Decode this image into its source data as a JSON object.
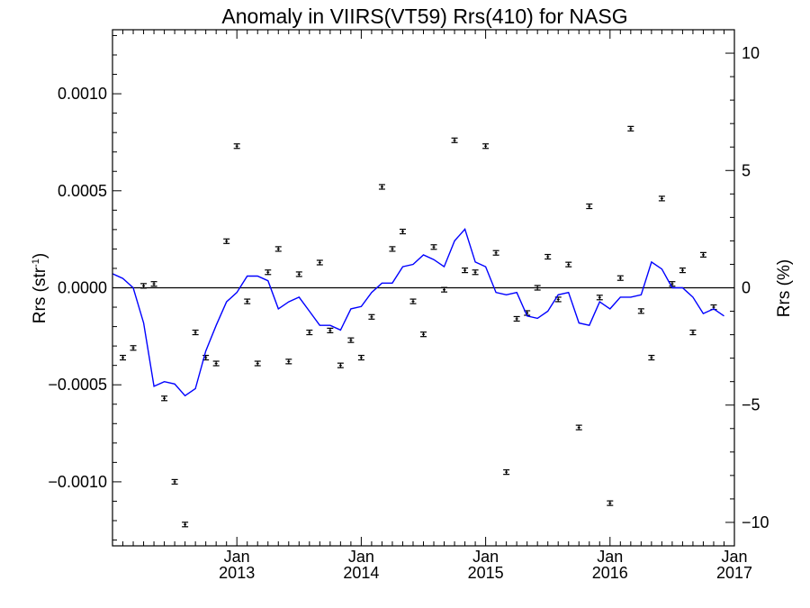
{
  "chart_data": {
    "type": "scatter",
    "title": "Anomaly in VIIRS(VT59) Rrs(410) for NASG",
    "ylabel_left": "Rrs (str",
    "ylabel_left_superscript": "-1",
    "ylabel_left_close": ")",
    "ylabel_right": "Rrs (%)",
    "xlabel": "",
    "x_range": [
      "2012-01",
      "2017-01"
    ],
    "ylim_left": [
      -0.00133,
      0.00133
    ],
    "ylim_right": [
      -11,
      11
    ],
    "left_ticks": [
      {
        "value": 0.001,
        "label": "0.0010"
      },
      {
        "value": 0.0005,
        "label": "0.0005"
      },
      {
        "value": 0.0,
        "label": "0.0000"
      },
      {
        "value": -0.0005,
        "label": "−0.0005"
      },
      {
        "value": -0.001,
        "label": "−0.0010"
      }
    ],
    "right_ticks": [
      {
        "value": 10,
        "label": "10"
      },
      {
        "value": 5,
        "label": "5"
      },
      {
        "value": 0,
        "label": "0"
      },
      {
        "value": -5,
        "label": "−5"
      },
      {
        "value": -10,
        "label": "−10"
      }
    ],
    "x_ticks": [
      {
        "date": "2013-01",
        "month": "Jan",
        "year": "2013"
      },
      {
        "date": "2014-01",
        "month": "Jan",
        "year": "2014"
      },
      {
        "date": "2015-01",
        "month": "Jan",
        "year": "2015"
      },
      {
        "date": "2016-01",
        "month": "Jan",
        "year": "2016"
      },
      {
        "date": "2017-01",
        "month": "Jan",
        "year": "2017"
      }
    ],
    "zero_line": true,
    "grid": false,
    "series": [
      {
        "kind": "points_with_errorbars",
        "color": "#000000",
        "points": [
          {
            "x": "2012-02",
            "y": -0.00036
          },
          {
            "x": "2012-03",
            "y": -0.00031
          },
          {
            "x": "2012-04",
            "y": 1e-05
          },
          {
            "x": "2012-05",
            "y": 2e-05
          },
          {
            "x": "2012-06",
            "y": -0.00057
          },
          {
            "x": "2012-07",
            "y": -0.001
          },
          {
            "x": "2012-08",
            "y": -0.00122
          },
          {
            "x": "2012-09",
            "y": -0.00023
          },
          {
            "x": "2012-10",
            "y": -0.00036
          },
          {
            "x": "2012-11",
            "y": -0.00039
          },
          {
            "x": "2012-12",
            "y": 0.00024
          },
          {
            "x": "2013-01",
            "y": 0.00073
          },
          {
            "x": "2013-02",
            "y": -7e-05
          },
          {
            "x": "2013-03",
            "y": -0.00039
          },
          {
            "x": "2013-04",
            "y": 8e-05
          },
          {
            "x": "2013-05",
            "y": 0.0002
          },
          {
            "x": "2013-06",
            "y": -0.00038
          },
          {
            "x": "2013-07",
            "y": 7e-05
          },
          {
            "x": "2013-08",
            "y": -0.00023
          },
          {
            "x": "2013-09",
            "y": 0.00013
          },
          {
            "x": "2013-10",
            "y": -0.00022
          },
          {
            "x": "2013-11",
            "y": -0.0004
          },
          {
            "x": "2013-12",
            "y": -0.00027
          },
          {
            "x": "2014-01",
            "y": -0.00036
          },
          {
            "x": "2014-02",
            "y": -0.00015
          },
          {
            "x": "2014-03",
            "y": 0.00052
          },
          {
            "x": "2014-04",
            "y": 0.0002
          },
          {
            "x": "2014-05",
            "y": 0.00029
          },
          {
            "x": "2014-06",
            "y": -7e-05
          },
          {
            "x": "2014-07",
            "y": -0.00024
          },
          {
            "x": "2014-08",
            "y": 0.00021
          },
          {
            "x": "2014-09",
            "y": -1e-05
          },
          {
            "x": "2014-10",
            "y": 0.00076
          },
          {
            "x": "2014-11",
            "y": 9e-05
          },
          {
            "x": "2014-12",
            "y": 8e-05
          },
          {
            "x": "2015-01",
            "y": 0.00073
          },
          {
            "x": "2015-02",
            "y": 0.00018
          },
          {
            "x": "2015-03",
            "y": -0.00095
          },
          {
            "x": "2015-04",
            "y": -0.00016
          },
          {
            "x": "2015-05",
            "y": -0.00013
          },
          {
            "x": "2015-06",
            "y": 0.0
          },
          {
            "x": "2015-07",
            "y": 0.00016
          },
          {
            "x": "2015-08",
            "y": -6e-05
          },
          {
            "x": "2015-09",
            "y": 0.00012
          },
          {
            "x": "2015-10",
            "y": -0.00072
          },
          {
            "x": "2015-11",
            "y": 0.00042
          },
          {
            "x": "2015-12",
            "y": -5e-05
          },
          {
            "x": "2016-01",
            "y": -0.00111
          },
          {
            "x": "2016-02",
            "y": 5e-05
          },
          {
            "x": "2016-03",
            "y": 0.00082
          },
          {
            "x": "2016-04",
            "y": -0.00012
          },
          {
            "x": "2016-05",
            "y": -0.00036
          },
          {
            "x": "2016-06",
            "y": 0.00046
          },
          {
            "x": "2016-07",
            "y": 2e-05
          },
          {
            "x": "2016-08",
            "y": 9e-05
          },
          {
            "x": "2016-09",
            "y": -0.00023
          },
          {
            "x": "2016-10",
            "y": 0.00017
          },
          {
            "x": "2016-11",
            "y": -0.0001
          }
        ]
      },
      {
        "kind": "line",
        "color": "#0000ff",
        "axis": "right",
        "points": [
          {
            "x": "2012-01",
            "y": 0.6
          },
          {
            "x": "2012-02",
            "y": 0.4
          },
          {
            "x": "2012-03",
            "y": 0.0
          },
          {
            "x": "2012-04",
            "y": -1.5
          },
          {
            "x": "2012-05",
            "y": -4.2
          },
          {
            "x": "2012-06",
            "y": -4.0
          },
          {
            "x": "2012-07",
            "y": -4.1
          },
          {
            "x": "2012-08",
            "y": -4.6
          },
          {
            "x": "2012-09",
            "y": -4.3
          },
          {
            "x": "2012-10",
            "y": -2.7
          },
          {
            "x": "2012-11",
            "y": -1.6
          },
          {
            "x": "2012-12",
            "y": -0.6
          },
          {
            "x": "2013-01",
            "y": -0.2
          },
          {
            "x": "2013-02",
            "y": 0.5
          },
          {
            "x": "2013-03",
            "y": 0.5
          },
          {
            "x": "2013-04",
            "y": 0.3
          },
          {
            "x": "2013-05",
            "y": -0.9
          },
          {
            "x": "2013-06",
            "y": -0.6
          },
          {
            "x": "2013-07",
            "y": -0.4
          },
          {
            "x": "2013-08",
            "y": -1.0
          },
          {
            "x": "2013-09",
            "y": -1.6
          },
          {
            "x": "2013-10",
            "y": -1.6
          },
          {
            "x": "2013-11",
            "y": -1.8
          },
          {
            "x": "2013-12",
            "y": -0.9
          },
          {
            "x": "2014-01",
            "y": -0.8
          },
          {
            "x": "2014-02",
            "y": -0.2
          },
          {
            "x": "2014-03",
            "y": 0.2
          },
          {
            "x": "2014-04",
            "y": 0.2
          },
          {
            "x": "2014-05",
            "y": 0.9
          },
          {
            "x": "2014-06",
            "y": 1.0
          },
          {
            "x": "2014-07",
            "y": 1.4
          },
          {
            "x": "2014-08",
            "y": 1.2
          },
          {
            "x": "2014-09",
            "y": 0.9
          },
          {
            "x": "2014-10",
            "y": 2.0
          },
          {
            "x": "2014-11",
            "y": 2.5
          },
          {
            "x": "2014-12",
            "y": 1.1
          },
          {
            "x": "2015-01",
            "y": 0.9
          },
          {
            "x": "2015-02",
            "y": -0.2
          },
          {
            "x": "2015-03",
            "y": -0.3
          },
          {
            "x": "2015-04",
            "y": -0.2
          },
          {
            "x": "2015-05",
            "y": -1.2
          },
          {
            "x": "2015-06",
            "y": -1.3
          },
          {
            "x": "2015-07",
            "y": -1.0
          },
          {
            "x": "2015-08",
            "y": -0.3
          },
          {
            "x": "2015-09",
            "y": -0.2
          },
          {
            "x": "2015-10",
            "y": -1.5
          },
          {
            "x": "2015-11",
            "y": -1.6
          },
          {
            "x": "2015-12",
            "y": -0.6
          },
          {
            "x": "2016-01",
            "y": -0.9
          },
          {
            "x": "2016-02",
            "y": -0.4
          },
          {
            "x": "2016-03",
            "y": -0.4
          },
          {
            "x": "2016-04",
            "y": -0.3
          },
          {
            "x": "2016-05",
            "y": 1.1
          },
          {
            "x": "2016-06",
            "y": 0.8
          },
          {
            "x": "2016-07",
            "y": 0.0
          },
          {
            "x": "2016-08",
            "y": 0.0
          },
          {
            "x": "2016-09",
            "y": -0.4
          },
          {
            "x": "2016-10",
            "y": -1.1
          },
          {
            "x": "2016-11",
            "y": -0.9
          },
          {
            "x": "2016-12",
            "y": -1.2
          }
        ]
      }
    ]
  }
}
